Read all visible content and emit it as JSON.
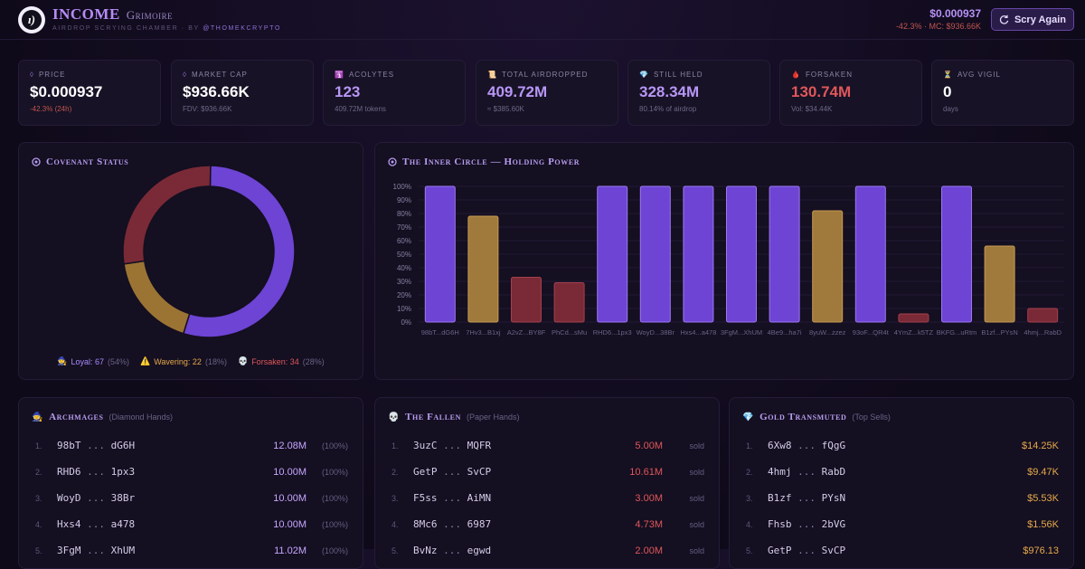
{
  "header": {
    "logo_glyph": "ı)",
    "title": "INCOME",
    "subtitle": "Grimoire",
    "tagline": "Airdrop Scrying Chamber · by",
    "handle": "@THOMEKCRYPTO",
    "price": "$0.000937",
    "price_sub": "-42.3% · MC: $936.66K",
    "scry_label": "Scry Again",
    "colors": {
      "accent": "#b68cf5",
      "negative": "#c0554f"
    }
  },
  "stats": [
    {
      "icon": "diamond-icon",
      "glyph": "◊",
      "label": "PRICE",
      "value": "$0.000937",
      "sub": "-42.3% (24h)",
      "value_color": "#ffffff",
      "sub_color": "#c0554f"
    },
    {
      "icon": "diamond-icon",
      "glyph": "◊",
      "label": "MARKET CAP",
      "value": "$936.66K",
      "sub": "FDV: $936.66K",
      "value_color": "#ffffff",
      "sub_color": "#6f6788"
    },
    {
      "icon": "acolyte-icon",
      "glyph": "🛐",
      "label": "ACOLYTES",
      "value": "123",
      "sub": "409.72M tokens",
      "value_color": "#b896f6",
      "sub_color": "#6f6788"
    },
    {
      "icon": "scroll-icon",
      "glyph": "📜",
      "label": "TOTAL AIRDROPPED",
      "value": "409.72M",
      "sub": "≈ $385.60K",
      "value_color": "#b896f6",
      "sub_color": "#6f6788"
    },
    {
      "icon": "gem-icon",
      "glyph": "💎",
      "label": "STILL HELD",
      "value": "328.34M",
      "sub": "80.14% of airdrop",
      "value_color": "#b896f6",
      "sub_color": "#6f6788"
    },
    {
      "icon": "blood-drop-icon",
      "glyph": "🩸",
      "label": "FORSAKEN",
      "value": "130.74M",
      "sub": "Vol: $34.44K",
      "value_color": "#e0575a",
      "sub_color": "#6f6788"
    },
    {
      "icon": "hourglass-icon",
      "glyph": "⏳",
      "label": "AVG VIGIL",
      "value": "0",
      "sub": "days",
      "value_color": "#ffffff",
      "sub_color": "#6f6788"
    }
  ],
  "covenant": {
    "title": "Covenant Status",
    "legend": [
      {
        "icon": "archmage-icon",
        "glyph": "🧙",
        "label": "Loyal: 67",
        "pct": "(54%)",
        "color": "#a78bfa"
      },
      {
        "icon": "warning-icon",
        "glyph": "⚠️",
        "label": "Wavering: 22",
        "pct": "(18%)",
        "color": "#e6a94a"
      },
      {
        "icon": "skull-icon",
        "glyph": "💀",
        "label": "Forsaken: 34",
        "pct": "(28%)",
        "color": "#e0575a"
      }
    ],
    "chart_data": {
      "type": "pie",
      "donut": true,
      "slices": [
        {
          "name": "Loyal",
          "value": 67,
          "color": "#6d44d4"
        },
        {
          "name": "Wavering",
          "value": 22,
          "color": "#9b7434"
        },
        {
          "name": "Forsaken",
          "value": 34,
          "color": "#7a2a36"
        }
      ]
    }
  },
  "inner_circle": {
    "title": "The Inner Circle — Holding Power",
    "chart_data": {
      "type": "bar",
      "categories": [
        "98bT...dG6H",
        "7Hv3...B1xj",
        "A2vZ...BY8F",
        "PhCd...sMu",
        "RHD6...1px3",
        "WoyD...38Br",
        "Hxs4...a478",
        "3FgM...XhUM",
        "4Be9...ha7i",
        "8yuW...zzez",
        "93oF...QR4t",
        "4YmZ...k5TZ",
        "BKFG...uRtm",
        "B1zf...PYsN",
        "4hmj...RabD"
      ],
      "values": [
        100,
        78,
        33,
        29,
        100,
        100,
        100,
        100,
        100,
        82,
        100,
        6,
        100,
        56,
        10
      ],
      "bar_colors": [
        "#6d44d4",
        "#a07a3c",
        "#7a2a36",
        "#7a2a36",
        "#6d44d4",
        "#6d44d4",
        "#6d44d4",
        "#6d44d4",
        "#6d44d4",
        "#a07a3c",
        "#6d44d4",
        "#7a2a36",
        "#6d44d4",
        "#a07a3c",
        "#7a2a36"
      ],
      "yticks": [
        "100%",
        "90%",
        "80%",
        "70%",
        "60%",
        "50%",
        "40%",
        "30%",
        "20%",
        "10%",
        "0%"
      ],
      "ylim": [
        0,
        100
      ]
    }
  },
  "archmages": {
    "title": "Archmages",
    "note": "(Diamond Hands)",
    "rows": [
      {
        "n": "1.",
        "a": "98bT",
        "b": "dG6H",
        "value": "12.08M",
        "tail": "(100%)"
      },
      {
        "n": "2.",
        "a": "RHD6",
        "b": "1px3",
        "value": "10.00M",
        "tail": "(100%)"
      },
      {
        "n": "3.",
        "a": "WoyD",
        "b": "38Br",
        "value": "10.00M",
        "tail": "(100%)"
      },
      {
        "n": "4.",
        "a": "Hxs4",
        "b": "a478",
        "value": "10.00M",
        "tail": "(100%)"
      },
      {
        "n": "5.",
        "a": "3FgM",
        "b": "XhUM",
        "value": "11.02M",
        "tail": "(100%)"
      }
    ]
  },
  "fallen": {
    "title": "The Fallen",
    "note": "(Paper Hands)",
    "rows": [
      {
        "n": "1.",
        "a": "3uzC",
        "b": "MQFR",
        "value": "5.00M",
        "tail": "sold"
      },
      {
        "n": "2.",
        "a": "GetP",
        "b": "SvCP",
        "value": "10.61M",
        "tail": "sold"
      },
      {
        "n": "3.",
        "a": "F5ss",
        "b": "AiMN",
        "value": "3.00M",
        "tail": "sold"
      },
      {
        "n": "4.",
        "a": "8Mc6",
        "b": "6987",
        "value": "4.73M",
        "tail": "sold"
      },
      {
        "n": "5.",
        "a": "BvNz",
        "b": "egwd",
        "value": "2.00M",
        "tail": "sold"
      }
    ]
  },
  "gold": {
    "title": "Gold Transmuted",
    "note": "(Top Sells)",
    "rows": [
      {
        "n": "1.",
        "a": "6Xw8",
        "b": "fQgG",
        "value": "$14.25K",
        "tail": ""
      },
      {
        "n": "2.",
        "a": "4hmj",
        "b": "RabD",
        "value": "$9.47K",
        "tail": ""
      },
      {
        "n": "3.",
        "a": "B1zf",
        "b": "PYsN",
        "value": "$5.53K",
        "tail": ""
      },
      {
        "n": "4.",
        "a": "Fhsb",
        "b": "2bVG",
        "value": "$1.56K",
        "tail": ""
      },
      {
        "n": "5.",
        "a": "GetP",
        "b": "SvCP",
        "value": "$976.13",
        "tail": ""
      }
    ]
  }
}
